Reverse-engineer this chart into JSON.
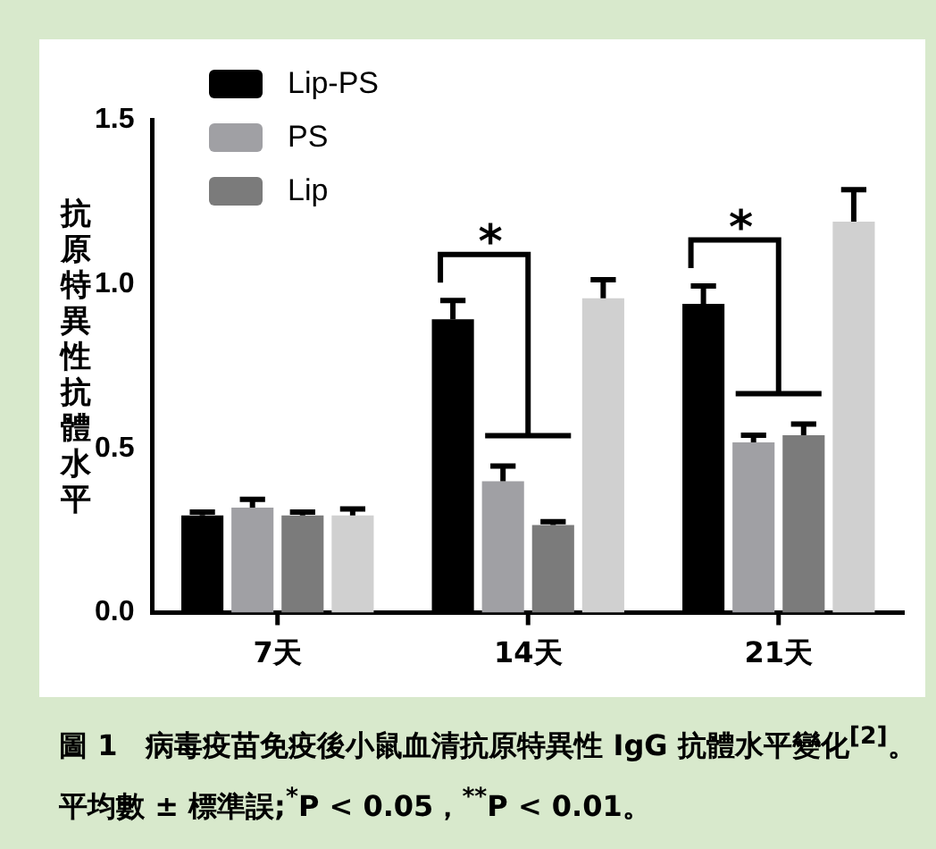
{
  "chart_data": {
    "type": "bar",
    "ylabel": "抗原特異性抗體水平",
    "categories": [
      "7天",
      "14天",
      "21天"
    ],
    "series": [
      {
        "name": "Lip-PS",
        "color": "#000000",
        "values": [
          0.296,
          0.893,
          0.94
        ],
        "errors": [
          [
            0.296,
            0.306
          ],
          [
            0.893,
            0.95
          ],
          [
            0.94,
            0.994
          ]
        ]
      },
      {
        "name": "PS",
        "color": "#a0a0a4",
        "values": [
          0.32,
          0.4,
          0.518
        ],
        "errors": [
          [
            0.32,
            0.345
          ],
          [
            0.4,
            0.446
          ],
          [
            0.518,
            0.54
          ]
        ]
      },
      {
        "name": "Lip",
        "color": "#7b7b7b",
        "values": [
          0.296,
          0.267,
          0.54
        ],
        "errors": [
          [
            0.296,
            0.306
          ],
          [
            0.267,
            0.277
          ],
          [
            0.54,
            0.574
          ]
        ]
      },
      {
        "color": "#d0d0d0",
        "values": [
          0.296,
          0.957,
          1.19
        ],
        "errors": [
          [
            0.296,
            0.316
          ],
          [
            0.957,
            1.013
          ],
          [
            1.19,
            1.287
          ]
        ]
      }
    ],
    "ylim": [
      0,
      1.5
    ],
    "yticks": [
      {
        "value": 0,
        "label": "0.0"
      },
      {
        "value": 0.5,
        "label": "0.5"
      },
      {
        "value": 1,
        "label": "1.0"
      },
      {
        "value": 1.5,
        "label": "1.5"
      }
    ],
    "grid": false,
    "legend": "top left",
    "annotations": [
      "*",
      "*",
      "圖 1　病毒疫苗免疫後小鼠血清抗原特異性 IgG 抗體水平變化$^{[2]}$。平均數 ± 標準誤;$^{*}$P < 0.05，$^{**}$P < 0.01。"
    ]
  }
}
